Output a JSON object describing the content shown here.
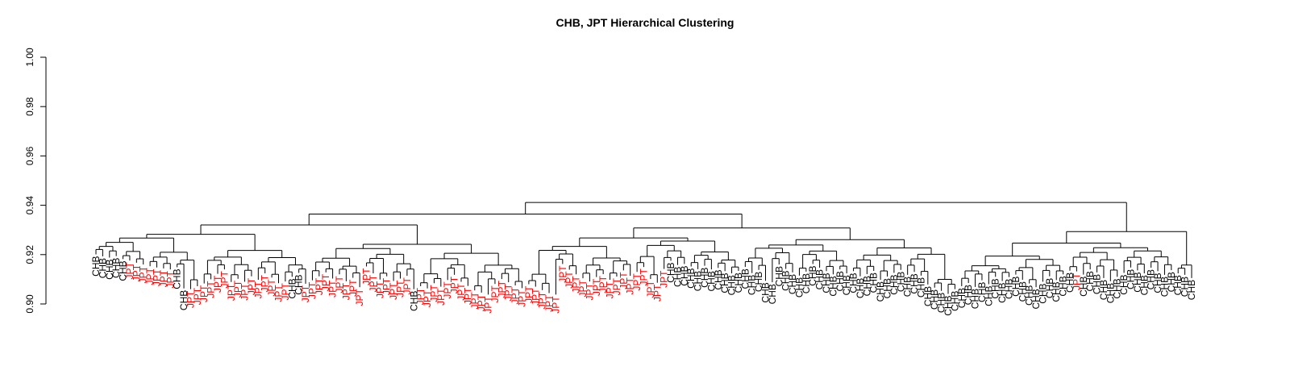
{
  "chart_data": {
    "type": "dendrogram",
    "title": "CHB, JPT Hierarchical Clustering",
    "xlabel": "",
    "ylabel": "",
    "ylim": [
      0.9,
      1.0
    ],
    "y_ticks": [
      "0.90",
      "0.92",
      "0.94",
      "0.96",
      "0.98",
      "1.00"
    ],
    "grid": false,
    "group_colors": {
      "CHB": "#000000",
      "JPT": "#ff0000"
    },
    "leaves": [
      {
        "label": "CHB",
        "height": 0.9201
      },
      {
        "label": "CHB",
        "height": 0.9193
      },
      {
        "label": "CHB",
        "height": 0.9188
      },
      {
        "label": "CHB",
        "height": 0.9194
      },
      {
        "label": "CHB",
        "height": 0.9182
      },
      {
        "label": "JPT",
        "height": 0.9176
      },
      {
        "label": "JPT",
        "height": 0.9167
      },
      {
        "label": "JPT",
        "height": 0.916
      },
      {
        "label": "JPT",
        "height": 0.9153
      },
      {
        "label": "JPT",
        "height": 0.9148
      },
      {
        "label": "JPT",
        "height": 0.9144
      },
      {
        "label": "JPT",
        "height": 0.914
      },
      {
        "label": "CHB",
        "height": 0.9149
      },
      {
        "label": "CHB",
        "height": 0.9063
      },
      {
        "label": "JPT",
        "height": 0.906
      },
      {
        "label": "JPT",
        "height": 0.9072
      },
      {
        "label": "JPT",
        "height": 0.9083
      },
      {
        "label": "JPT",
        "height": 0.91
      },
      {
        "label": "JPT",
        "height": 0.9122
      },
      {
        "label": "JPT",
        "height": 0.914
      },
      {
        "label": "JPT",
        "height": 0.9089
      },
      {
        "label": "JPT",
        "height": 0.9102
      },
      {
        "label": "JPT",
        "height": 0.909
      },
      {
        "label": "JPT",
        "height": 0.9112
      },
      {
        "label": "JPT",
        "height": 0.9098
      },
      {
        "label": "JPT",
        "height": 0.9124
      },
      {
        "label": "JPT",
        "height": 0.9107
      },
      {
        "label": "JPT",
        "height": 0.9084
      },
      {
        "label": "JPT",
        "height": 0.9091
      },
      {
        "label": "CHB",
        "height": 0.911
      },
      {
        "label": "CHB",
        "height": 0.9126
      },
      {
        "label": "JPT",
        "height": 0.9082
      },
      {
        "label": "JPT",
        "height": 0.9096
      },
      {
        "label": "JPT",
        "height": 0.9112
      },
      {
        "label": "JPT",
        "height": 0.9128
      },
      {
        "label": "JPT",
        "height": 0.9103
      },
      {
        "label": "JPT",
        "height": 0.912
      },
      {
        "label": "JPT",
        "height": 0.9092
      },
      {
        "label": "JPT",
        "height": 0.9106
      },
      {
        "label": "JPT",
        "height": 0.9068
      },
      {
        "label": "JPT",
        "height": 0.9152
      },
      {
        "label": "JPT",
        "height": 0.9124
      },
      {
        "label": "JPT",
        "height": 0.9099
      },
      {
        "label": "JPT",
        "height": 0.9112
      },
      {
        "label": "JPT",
        "height": 0.9093
      },
      {
        "label": "JPT",
        "height": 0.9103
      },
      {
        "label": "JPT",
        "height": 0.9114
      },
      {
        "label": "CHB",
        "height": 0.906
      },
      {
        "label": "JPT",
        "height": 0.9072
      },
      {
        "label": "JPT",
        "height": 0.9063
      },
      {
        "label": "JPT",
        "height": 0.9084
      },
      {
        "label": "JPT",
        "height": 0.907
      },
      {
        "label": "JPT",
        "height": 0.9097
      },
      {
        "label": "JPT",
        "height": 0.9118
      },
      {
        "label": "JPT",
        "height": 0.909
      },
      {
        "label": "JPT",
        "height": 0.9073
      },
      {
        "label": "JPT",
        "height": 0.9055
      },
      {
        "label": "JPT",
        "height": 0.9046
      },
      {
        "label": "JPT",
        "height": 0.9038
      },
      {
        "label": "JPT",
        "height": 0.9081
      },
      {
        "label": "JPT",
        "height": 0.9101
      },
      {
        "label": "JPT",
        "height": 0.9088
      },
      {
        "label": "JPT",
        "height": 0.9075
      },
      {
        "label": "JPT",
        "height": 0.9064
      },
      {
        "label": "JPT",
        "height": 0.908
      },
      {
        "label": "JPT",
        "height": 0.907
      },
      {
        "label": "JPT",
        "height": 0.9056
      },
      {
        "label": "JPT",
        "height": 0.9044
      },
      {
        "label": "JPT",
        "height": 0.9038
      },
      {
        "label": "JPT",
        "height": 0.9162
      },
      {
        "label": "JPT",
        "height": 0.9139
      },
      {
        "label": "JPT",
        "height": 0.912
      },
      {
        "label": "JPT",
        "height": 0.9104
      },
      {
        "label": "JPT",
        "height": 0.9091
      },
      {
        "label": "JPT",
        "height": 0.9109
      },
      {
        "label": "JPT",
        "height": 0.9121
      },
      {
        "label": "JPT",
        "height": 0.9098
      },
      {
        "label": "JPT",
        "height": 0.9111
      },
      {
        "label": "JPT",
        "height": 0.9136
      },
      {
        "label": "JPT",
        "height": 0.9114
      },
      {
        "label": "JPT",
        "height": 0.913
      },
      {
        "label": "JPT",
        "height": 0.915
      },
      {
        "label": "JPT",
        "height": 0.9101
      },
      {
        "label": "JPT",
        "height": 0.9086
      },
      {
        "label": "JPT",
        "height": 0.9142
      },
      {
        "label": "CHB",
        "height": 0.9175
      },
      {
        "label": "CHB",
        "height": 0.9158
      },
      {
        "label": "CHB",
        "height": 0.9162
      },
      {
        "label": "CHB",
        "height": 0.9152
      },
      {
        "label": "CHB",
        "height": 0.9141
      },
      {
        "label": "CHB",
        "height": 0.9155
      },
      {
        "label": "CHB",
        "height": 0.914
      },
      {
        "label": "CHB",
        "height": 0.9146
      },
      {
        "label": "CHB",
        "height": 0.9133
      },
      {
        "label": "CHB",
        "height": 0.9124
      },
      {
        "label": "CHB",
        "height": 0.9134
      },
      {
        "label": "CHB",
        "height": 0.915
      },
      {
        "label": "CHB",
        "height": 0.9125
      },
      {
        "label": "CHB",
        "height": 0.9138
      },
      {
        "label": "CHB",
        "height": 0.9094
      },
      {
        "label": "CHB",
        "height": 0.9088
      },
      {
        "label": "CHB",
        "height": 0.916
      },
      {
        "label": "CHB",
        "height": 0.9142
      },
      {
        "label": "CHB",
        "height": 0.9128
      },
      {
        "label": "CHB",
        "height": 0.9115
      },
      {
        "label": "CHB",
        "height": 0.9131
      },
      {
        "label": "CHB",
        "height": 0.9162
      },
      {
        "label": "CHB",
        "height": 0.9147
      },
      {
        "label": "CHB",
        "height": 0.9133
      },
      {
        "label": "CHB",
        "height": 0.912
      },
      {
        "label": "CHB",
        "height": 0.914
      },
      {
        "label": "CHB",
        "height": 0.9124
      },
      {
        "label": "CHB",
        "height": 0.9133
      },
      {
        "label": "CHB",
        "height": 0.9112
      },
      {
        "label": "CHB",
        "height": 0.9121
      },
      {
        "label": "CHB",
        "height": 0.9134
      },
      {
        "label": "CHB",
        "height": 0.9098
      },
      {
        "label": "CHB",
        "height": 0.9111
      },
      {
        "label": "CHB",
        "height": 0.9126
      },
      {
        "label": "CHB",
        "height": 0.9138
      },
      {
        "label": "CHB",
        "height": 0.9118
      },
      {
        "label": "CHB",
        "height": 0.913
      },
      {
        "label": "CHB",
        "height": 0.9115
      },
      {
        "label": "CHB",
        "height": 0.9079
      },
      {
        "label": "CHB",
        "height": 0.9066
      },
      {
        "label": "CHB",
        "height": 0.9053
      },
      {
        "label": "CHB",
        "height": 0.9041
      },
      {
        "label": "CHB",
        "height": 0.906
      },
      {
        "label": "CHB",
        "height": 0.9072
      },
      {
        "label": "CHB",
        "height": 0.9085
      },
      {
        "label": "CHB",
        "height": 0.9069
      },
      {
        "label": "CHB",
        "height": 0.9096
      },
      {
        "label": "CHB",
        "height": 0.908
      },
      {
        "label": "CHB",
        "height": 0.911
      },
      {
        "label": "CHB",
        "height": 0.9093
      },
      {
        "label": "CHB",
        "height": 0.9109
      },
      {
        "label": "CHB",
        "height": 0.9119
      },
      {
        "label": "CHB",
        "height": 0.9098
      },
      {
        "label": "CHB",
        "height": 0.9083
      },
      {
        "label": "CHB",
        "height": 0.9068
      },
      {
        "label": "CHB",
        "height": 0.909
      },
      {
        "label": "CHB",
        "height": 0.9112
      },
      {
        "label": "CHB",
        "height": 0.9097
      },
      {
        "label": "CHB",
        "height": 0.912
      },
      {
        "label": "CHB",
        "height": 0.9135
      },
      {
        "label": "JPT",
        "height": 0.9132
      },
      {
        "label": "CHB",
        "height": 0.9119
      },
      {
        "label": "CHB",
        "height": 0.914
      },
      {
        "label": "CHB",
        "height": 0.9128
      },
      {
        "label": "CHB",
        "height": 0.9105
      },
      {
        "label": "CHB",
        "height": 0.9092
      },
      {
        "label": "CHB",
        "height": 0.911
      },
      {
        "label": "CHB",
        "height": 0.9126
      },
      {
        "label": "CHB",
        "height": 0.9148
      },
      {
        "label": "CHB",
        "height": 0.9136
      },
      {
        "label": "CHB",
        "height": 0.9124
      },
      {
        "label": "CHB",
        "height": 0.9147
      },
      {
        "label": "CHB",
        "height": 0.9133
      },
      {
        "label": "CHB",
        "height": 0.9118
      },
      {
        "label": "CHB",
        "height": 0.9137
      },
      {
        "label": "CHB",
        "height": 0.9124
      },
      {
        "label": "CHB",
        "height": 0.9118
      },
      {
        "label": "CHB",
        "height": 0.9105
      }
    ]
  }
}
